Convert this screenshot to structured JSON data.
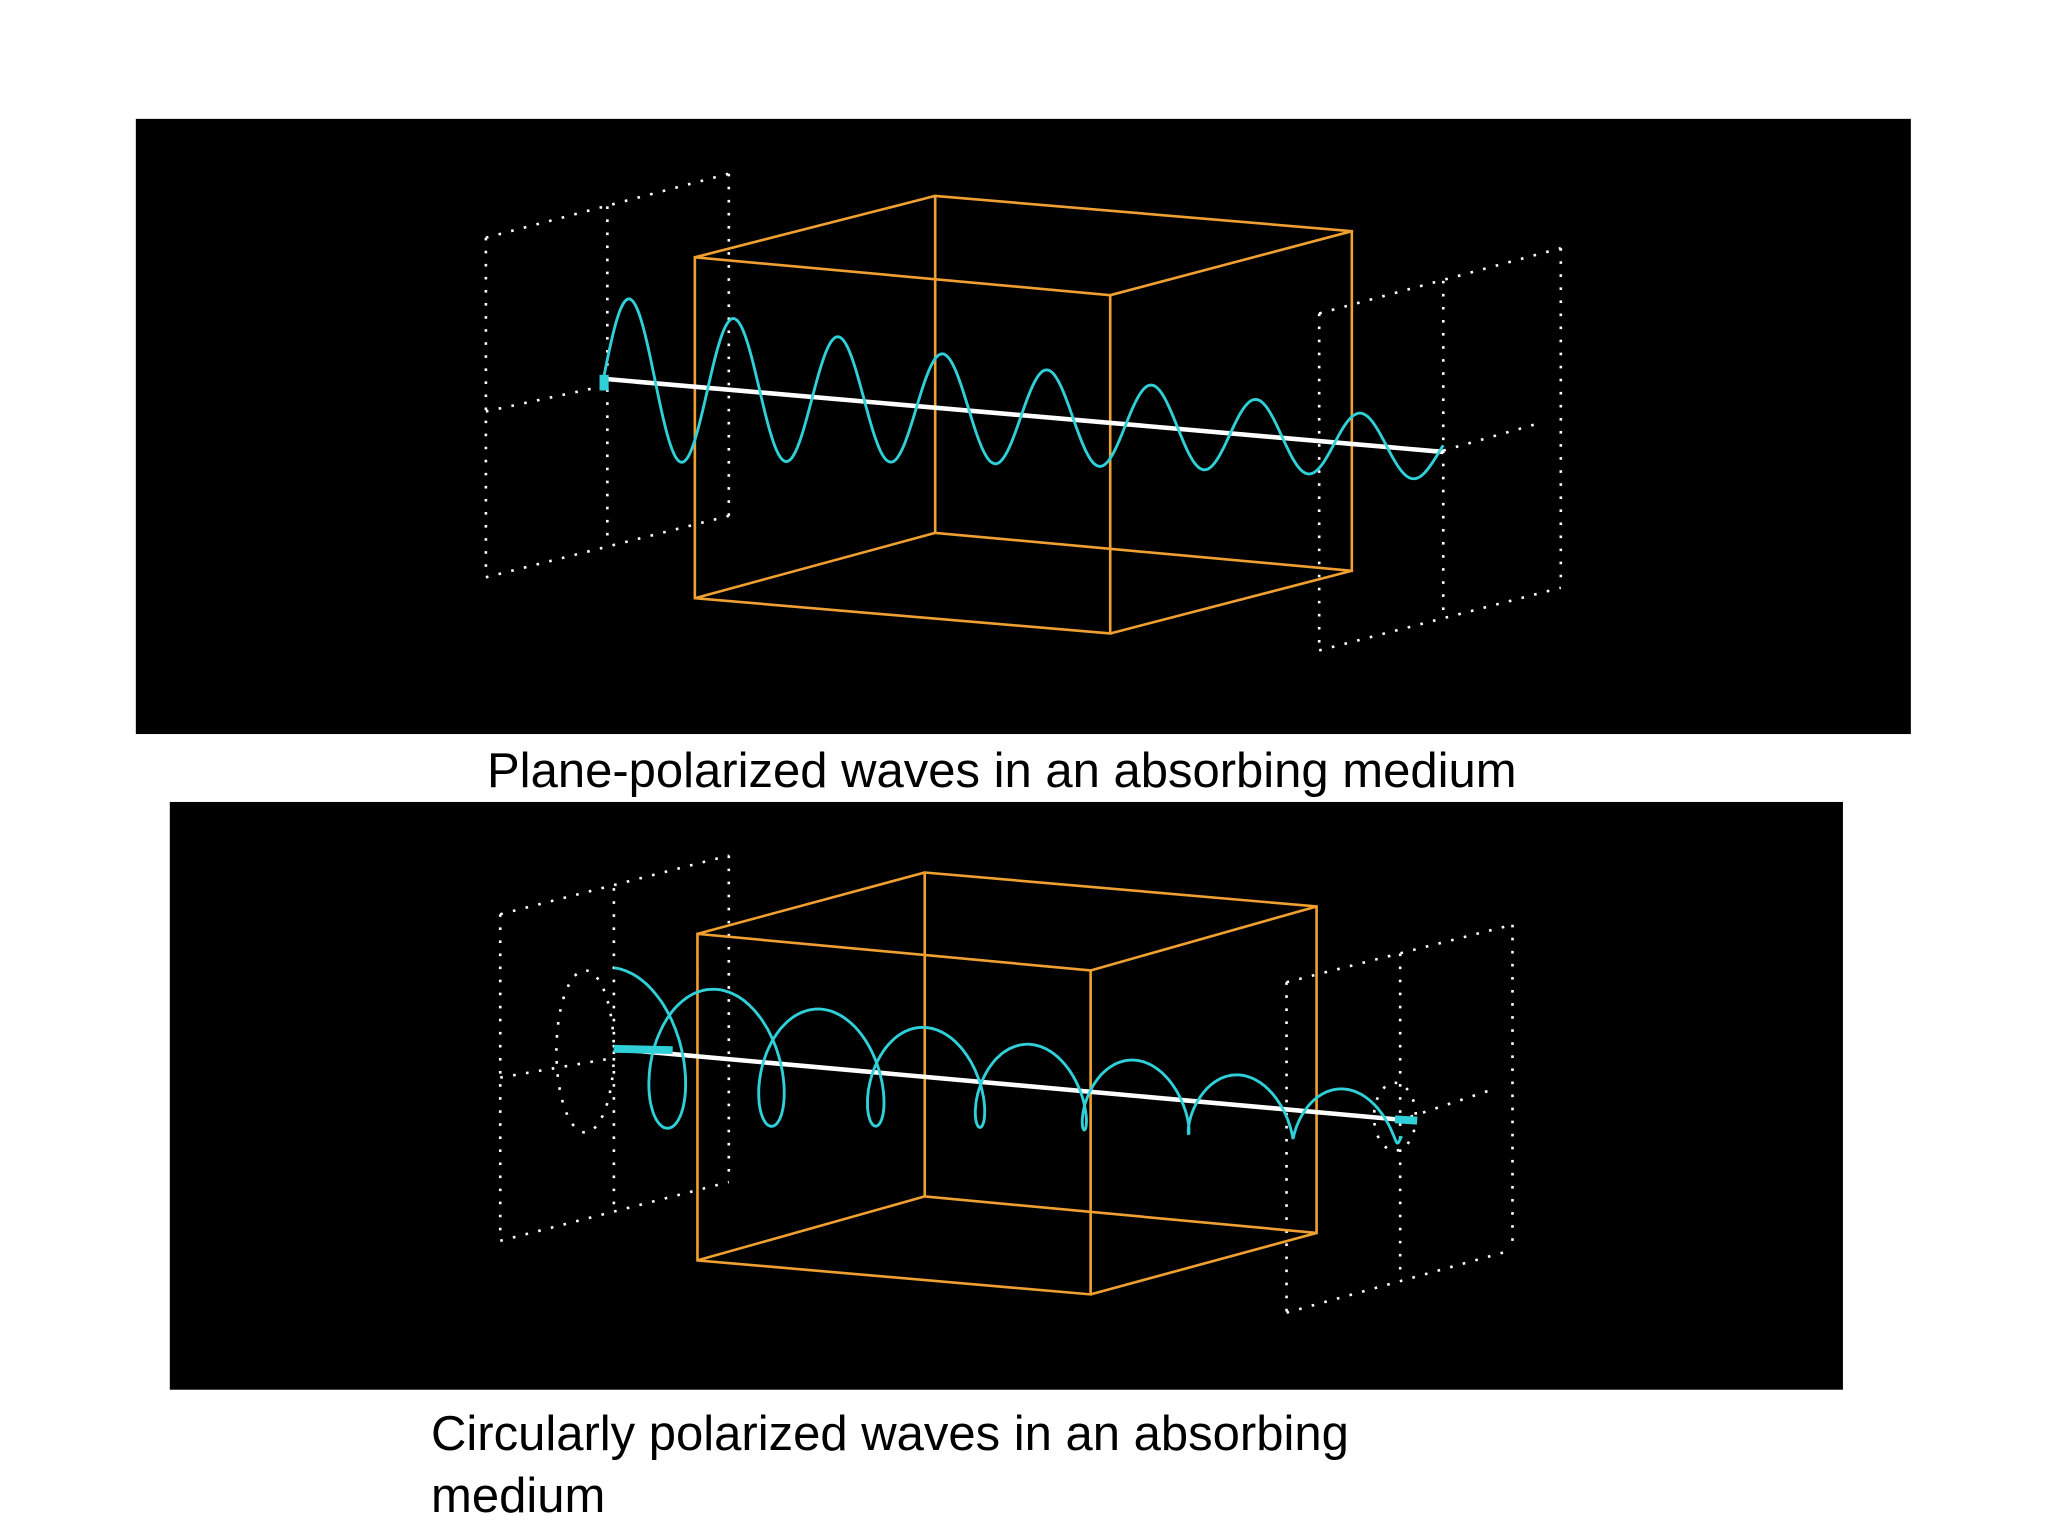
{
  "panels": [
    {
      "caption": "Plane-polarized waves in an absorbing medium"
    },
    {
      "caption": "Circularly polarized waves in an absorbing medium"
    }
  ]
}
